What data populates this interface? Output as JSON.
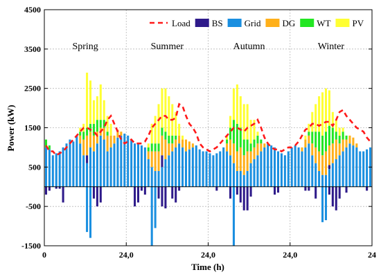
{
  "chart_data": {
    "type": "bar",
    "stacked": true,
    "x_unit_label": "Time (h)",
    "y_label": "Power (kW)",
    "ylim": [
      -1500,
      4500
    ],
    "yticks": [
      -1500,
      -500,
      500,
      1500,
      2500,
      3500,
      4500
    ],
    "xlim": [
      0,
      96
    ],
    "xticks": [
      {
        "x": 0,
        "label": "0"
      },
      {
        "x": 24,
        "label": "24,0"
      },
      {
        "x": 48,
        "label": "24,0"
      },
      {
        "x": 72,
        "label": "24,0"
      },
      {
        "x": 96,
        "label": "24"
      }
    ],
    "season_labels": [
      {
        "x": 12,
        "label": "Spring"
      },
      {
        "x": 36,
        "label": "Summer"
      },
      {
        "x": 60,
        "label": "Autumn"
      },
      {
        "x": 84,
        "label": "Winter"
      }
    ],
    "legend": [
      {
        "key": "load",
        "label": "Load",
        "kind": "line",
        "color": "#ff1a1a"
      },
      {
        "key": "bs",
        "label": "BS",
        "kind": "bar",
        "color": "#2e1a8a"
      },
      {
        "key": "grid",
        "label": "Grid",
        "kind": "bar",
        "color": "#1a8fe0"
      },
      {
        "key": "dg",
        "label": "DG",
        "kind": "bar",
        "color": "#ffb01a"
      },
      {
        "key": "wt",
        "label": "WT",
        "kind": "bar",
        "color": "#22e622"
      },
      {
        "key": "pv",
        "label": "PV",
        "kind": "bar",
        "color": "#ffff33"
      }
    ],
    "legend_position": "top-right",
    "grid": true,
    "hours": [
      1,
      2,
      3,
      4,
      5,
      6,
      7,
      8,
      9,
      10,
      11,
      12,
      13,
      14,
      15,
      16,
      17,
      18,
      19,
      20,
      21,
      22,
      23,
      24,
      25,
      26,
      27,
      28,
      29,
      30,
      31,
      32,
      33,
      34,
      35,
      36,
      37,
      38,
      39,
      40,
      41,
      42,
      43,
      44,
      45,
      46,
      47,
      48,
      49,
      50,
      51,
      52,
      53,
      54,
      55,
      56,
      57,
      58,
      59,
      60,
      61,
      62,
      63,
      64,
      65,
      66,
      67,
      68,
      69,
      70,
      71,
      72,
      73,
      74,
      75,
      76,
      77,
      78,
      79,
      80,
      81,
      82,
      83,
      84,
      85,
      86,
      87,
      88,
      89,
      90,
      91,
      92,
      93,
      94,
      95,
      96
    ],
    "series": {
      "grid": [
        1000,
        950,
        800,
        850,
        900,
        1000,
        1100,
        1200,
        1150,
        1300,
        1100,
        800,
        600,
        1000,
        900,
        1100,
        1300,
        1200,
        900,
        1000,
        1100,
        1250,
        1300,
        1350,
        1300,
        1200,
        1100,
        1100,
        1050,
        1000,
        700,
        500,
        400,
        400,
        500,
        700,
        800,
        900,
        1000,
        1100,
        1000,
        900,
        950,
        1000,
        1050,
        950,
        900,
        900,
        850,
        800,
        850,
        900,
        1000,
        900,
        800,
        600,
        400,
        400,
        300,
        400,
        600,
        700,
        800,
        900,
        1000,
        1100,
        1050,
        1000,
        900,
        850,
        800,
        900,
        1000,
        1050,
        1000,
        900,
        1000,
        1100,
        800,
        600,
        400,
        300,
        300,
        450,
        600,
        700,
        800,
        900,
        1000,
        1100,
        1050,
        1000,
        900,
        900,
        950,
        1000
      ],
      "grid_neg": [
        0,
        0,
        0,
        0,
        0,
        0,
        0,
        0,
        0,
        0,
        0,
        0,
        -1150,
        -1300,
        0,
        0,
        0,
        0,
        0,
        0,
        0,
        0,
        0,
        0,
        0,
        0,
        0,
        0,
        0,
        0,
        0,
        -1500,
        -1050,
        0,
        0,
        0,
        0,
        0,
        0,
        0,
        0,
        0,
        0,
        0,
        0,
        0,
        0,
        0,
        0,
        0,
        0,
        0,
        0,
        0,
        0,
        -1500,
        0,
        0,
        0,
        0,
        0,
        0,
        0,
        0,
        0,
        0,
        0,
        0,
        0,
        0,
        0,
        0,
        0,
        0,
        0,
        0,
        0,
        0,
        0,
        0,
        0,
        -900,
        -850,
        0,
        0,
        0,
        0,
        0,
        0,
        0,
        0,
        0,
        0,
        0,
        0,
        0
      ],
      "bs_pos": [
        0,
        0,
        0,
        0,
        0,
        0,
        0,
        0,
        0,
        0,
        0,
        0,
        200,
        0,
        0,
        0,
        0,
        0,
        0,
        0,
        0,
        0,
        0,
        0,
        0,
        0,
        0,
        0,
        0,
        0,
        0,
        0,
        0,
        0,
        300,
        0,
        0,
        0,
        0,
        0,
        0,
        0,
        0,
        0,
        0,
        0,
        0,
        0,
        0,
        0,
        0,
        0,
        0,
        0,
        0,
        0,
        0,
        0,
        0,
        0,
        0,
        0,
        0,
        0,
        0,
        0,
        0,
        0,
        0,
        0,
        0,
        0,
        0,
        0,
        0,
        0,
        0,
        0,
        0,
        0,
        0,
        0,
        0,
        100,
        0,
        0,
        0,
        0,
        0,
        0,
        0,
        0,
        0,
        0,
        0,
        0
      ],
      "bs_neg": [
        -200,
        -100,
        0,
        -50,
        -50,
        -400,
        0,
        0,
        0,
        0,
        0,
        0,
        0,
        0,
        -300,
        -500,
        -400,
        0,
        0,
        0,
        0,
        0,
        0,
        0,
        0,
        0,
        -500,
        -400,
        -100,
        -200,
        0,
        0,
        0,
        -300,
        -500,
        -550,
        0,
        -300,
        -400,
        -100,
        0,
        0,
        0,
        0,
        0,
        0,
        0,
        0,
        0,
        0,
        -100,
        0,
        0,
        0,
        -300,
        0,
        -200,
        -400,
        -600,
        -600,
        -250,
        0,
        0,
        0,
        0,
        0,
        0,
        -200,
        -150,
        0,
        0,
        0,
        0,
        0,
        0,
        0,
        -100,
        -100,
        0,
        -300,
        0,
        0,
        0,
        -200,
        -500,
        -600,
        -300,
        0,
        -150,
        0,
        0,
        0,
        0,
        0,
        -100,
        0
      ],
      "dg": [
        0,
        0,
        0,
        0,
        0,
        0,
        0,
        0,
        0,
        0,
        200,
        400,
        500,
        400,
        400,
        300,
        200,
        300,
        400,
        300,
        200,
        200,
        100,
        0,
        0,
        0,
        0,
        0,
        0,
        0,
        200,
        400,
        500,
        500,
        500,
        500,
        300,
        200,
        200,
        200,
        200,
        300,
        200,
        100,
        0,
        0,
        0,
        0,
        0,
        0,
        0,
        0,
        0,
        200,
        400,
        500,
        500,
        600,
        500,
        500,
        300,
        300,
        300,
        200,
        100,
        0,
        0,
        0,
        0,
        0,
        0,
        0,
        0,
        0,
        0,
        100,
        200,
        200,
        300,
        400,
        500,
        500,
        600,
        500,
        500,
        500,
        300,
        300,
        200,
        200,
        200,
        100,
        0,
        0,
        0,
        0
      ],
      "wt": [
        200,
        100,
        0,
        0,
        0,
        0,
        0,
        0,
        0,
        0,
        100,
        200,
        200,
        200,
        300,
        300,
        200,
        200,
        100,
        0,
        0,
        0,
        0,
        0,
        0,
        0,
        0,
        0,
        0,
        0,
        100,
        200,
        200,
        200,
        200,
        200,
        200,
        200,
        100,
        0,
        0,
        0,
        0,
        0,
        0,
        0,
        0,
        0,
        0,
        0,
        0,
        0,
        0,
        100,
        300,
        600,
        700,
        500,
        400,
        300,
        200,
        200,
        200,
        100,
        0,
        0,
        0,
        0,
        0,
        0,
        0,
        0,
        0,
        0,
        0,
        0,
        0,
        100,
        300,
        400,
        500,
        500,
        500,
        500,
        400,
        200,
        200,
        200,
        100,
        0,
        0,
        0,
        0,
        0,
        0,
        0
      ],
      "pv": [
        0,
        0,
        0,
        0,
        0,
        0,
        0,
        0,
        0,
        0,
        100,
        200,
        1400,
        1100,
        600,
        600,
        900,
        500,
        400,
        300,
        0,
        0,
        0,
        0,
        0,
        0,
        0,
        0,
        0,
        0,
        100,
        500,
        700,
        1000,
        1000,
        1100,
        1000,
        800,
        600,
        300,
        100,
        0,
        0,
        0,
        0,
        0,
        0,
        0,
        0,
        0,
        0,
        0,
        0,
        100,
        300,
        800,
        1000,
        800,
        900,
        900,
        600,
        500,
        100,
        0,
        0,
        0,
        0,
        0,
        0,
        0,
        0,
        0,
        0,
        0,
        0,
        0,
        100,
        200,
        500,
        700,
        900,
        1100,
        1100,
        900,
        400,
        300,
        200,
        100,
        0,
        0,
        0,
        0,
        0,
        0,
        0,
        0
      ],
      "load": [
        1050,
        900,
        900,
        800,
        850,
        900,
        1000,
        1100,
        1200,
        1300,
        1400,
        1500,
        1500,
        1450,
        1400,
        1300,
        1400,
        1500,
        1700,
        1800,
        1600,
        1400,
        1200,
        1100,
        1150,
        1200,
        1100,
        1100,
        1100,
        1150,
        1300,
        1500,
        1600,
        1700,
        1800,
        1800,
        1700,
        1700,
        1750,
        2100,
        2050,
        1800,
        1600,
        1500,
        1350,
        1100,
        1000,
        950,
        900,
        950,
        1000,
        1100,
        1200,
        1300,
        1400,
        1500,
        1500,
        1450,
        1400,
        1500,
        1550,
        1600,
        1700,
        1500,
        1250,
        1100,
        1000,
        950,
        950,
        900,
        950,
        1000,
        1000,
        1050,
        1150,
        1300,
        1450,
        1500,
        1600,
        1600,
        1550,
        1600,
        1650,
        1650,
        1550,
        1700,
        1900,
        1950,
        1800,
        1700,
        1600,
        1500,
        1450,
        1400,
        1250,
        1150
      ]
    }
  }
}
